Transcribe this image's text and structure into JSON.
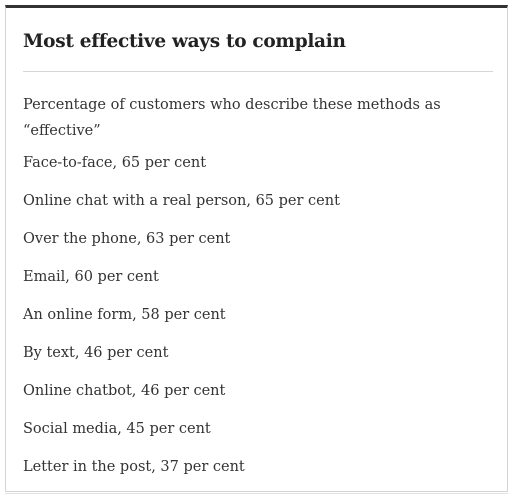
{
  "title": "Most effective ways to complain",
  "intro": "Percentage of customers who describe these methods as “effective”",
  "items": [
    "Face-to-face, 65 per cent",
    "Online chat with a real person, 65 per cent",
    "Over the phone, 63 per cent",
    "Email, 60 per cent",
    "An online form, 58 per cent",
    "By text, 46 per cent",
    "Online chatbot, 46 per cent",
    "Social media, 45 per cent",
    "Letter in the post, 37 per cent"
  ]
}
